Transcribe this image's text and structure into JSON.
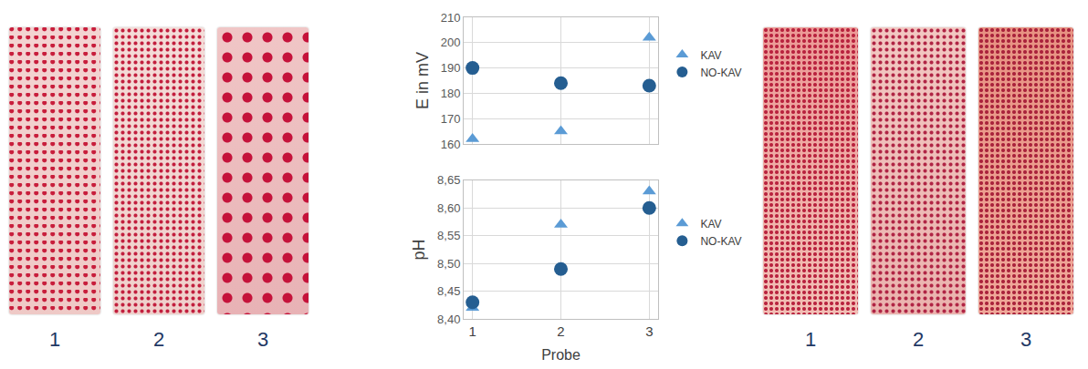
{
  "chart_data": [
    {
      "type": "scatter",
      "ylabel": "E in mV",
      "x": [
        1,
        2,
        3
      ],
      "xlim": [
        0.9,
        3.1
      ],
      "xticks": [
        1,
        2,
        3
      ],
      "ylim": [
        160,
        210
      ],
      "yticks": [
        160,
        170,
        180,
        190,
        200,
        210
      ],
      "grid": true,
      "legend": "right",
      "tick_labels": "y",
      "series": [
        {
          "name": "KAV",
          "color": "#5b9bd5",
          "marker": "triangle",
          "values": [
            162,
            165,
            202
          ]
        },
        {
          "name": "NO-KAV",
          "color": "#255e91",
          "marker": "circle",
          "values": [
            190,
            184,
            183
          ]
        }
      ]
    },
    {
      "type": "scatter",
      "ylabel": "pH",
      "xlabel": "Probe",
      "x": [
        1,
        2,
        3
      ],
      "xlim": [
        0.9,
        3.1
      ],
      "xticks": [
        1,
        2,
        3
      ],
      "ylim": [
        8.4,
        8.65
      ],
      "yticks": [
        {
          "value": 8.4,
          "label": "8,40"
        },
        {
          "value": 8.45,
          "label": "8,45"
        },
        {
          "value": 8.5,
          "label": "8,50"
        },
        {
          "value": 8.55,
          "label": "8,55"
        },
        {
          "value": 8.6,
          "label": "8,60"
        },
        {
          "value": 8.65,
          "label": "8,65"
        }
      ],
      "grid": true,
      "legend": "right",
      "series": [
        {
          "name": "KAV",
          "color": "#5b9bd5",
          "marker": "triangle",
          "values": [
            8.42,
            8.57,
            8.63
          ]
        },
        {
          "name": "NO-KAV",
          "color": "#255e91",
          "marker": "circle",
          "values": [
            8.43,
            8.49,
            8.6
          ]
        }
      ]
    }
  ],
  "photos": {
    "left": {
      "labels": [
        "1",
        "2",
        "3"
      ]
    },
    "right": {
      "labels": [
        "1",
        "2",
        "3"
      ]
    }
  }
}
